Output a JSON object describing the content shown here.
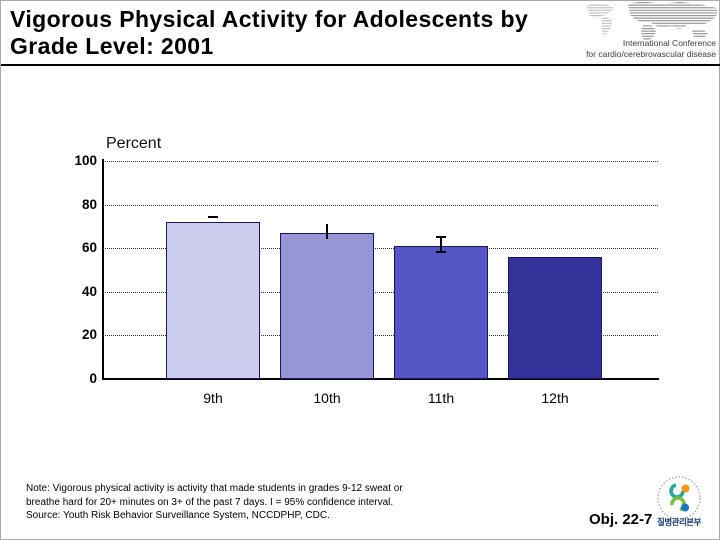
{
  "header": {
    "title_line1": "Vigorous Physical Activity for Adolescents by",
    "title_line2": "Grade Level: 2001",
    "conference_line1": "International Conference",
    "conference_line2": "for cardio/cerebrovascular disease"
  },
  "chart_data": {
    "type": "bar",
    "title": "",
    "xlabel": "",
    "ylabel": "Percent",
    "categories": [
      "9th",
      "10th",
      "11th",
      "12th"
    ],
    "values": [
      72,
      67,
      61,
      56
    ],
    "ylim": [
      0,
      100
    ],
    "yticks": [
      0,
      20,
      40,
      60,
      80,
      100
    ],
    "grid": "horizontal-dotted",
    "legend": "none",
    "bar_colors": [
      "#ccccee",
      "#9795d5",
      "#5456c6",
      "#333399"
    ],
    "error_bars": [
      {
        "style": "cap",
        "top": 75,
        "bottom": null
      },
      {
        "style": "line",
        "top": 71,
        "bottom": 64
      },
      {
        "style": "ibeam",
        "top": 65.5,
        "bottom": 58.5
      },
      {
        "style": "none",
        "top": null,
        "bottom": null
      }
    ],
    "error_bar_note": "I = 95% confidence interval"
  },
  "footer": {
    "note_line1": "Note: Vigorous physical activity is activity that made students in grades 9-12 sweat or",
    "note_line2": "breathe hard for 20+ minutes on 3+ of the past 7 days. I = 95% confidence interval.",
    "note_line3": "Source: Youth Risk Behavior Surveillance System, NCCDPHP, CDC.",
    "objective_label": "Obj. 22-7",
    "logo_text": "질병관리본부"
  }
}
